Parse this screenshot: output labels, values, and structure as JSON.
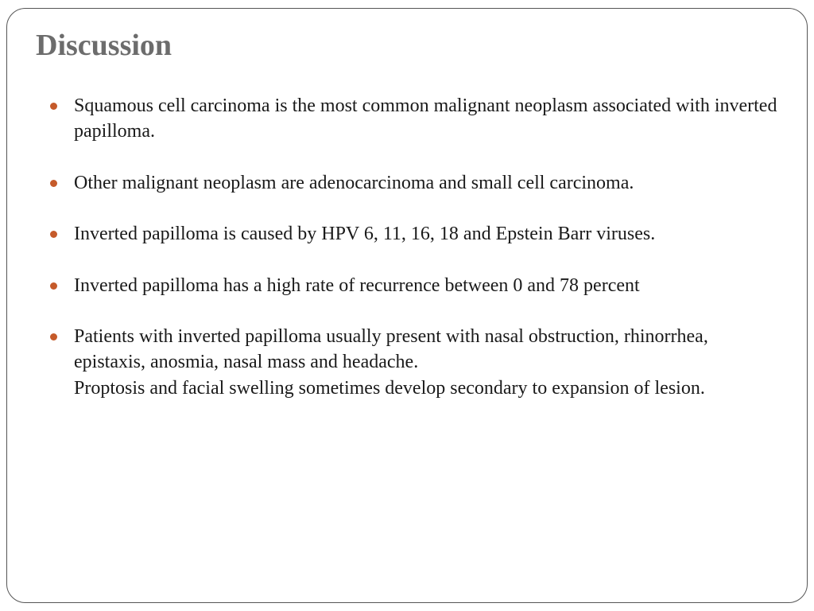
{
  "slide": {
    "title": "Discussion",
    "title_color": "#6c6c6c",
    "bullet_color": "#c55a2a",
    "text_color": "#1a1a1a",
    "border_color": "#555555",
    "background_color": "#ffffff",
    "title_fontsize": 38,
    "body_fontsize": 24,
    "bullets": [
      {
        "text": "Squamous cell carcinoma is the most common malignant neoplasm associated with inverted papilloma."
      },
      {
        "text": "Other malignant neoplasm are adenocarcinoma and small cell carcinoma."
      },
      {
        "text": "Inverted papilloma is caused by HPV 6, 11, 16, 18 and Epstein Barr viruses."
      },
      {
        "text": "Inverted papilloma has a high rate of recurrence between 0 and 78 percent"
      },
      {
        "text": "Patients with inverted papilloma usually present with nasal obstruction, rhinorrhea, epistaxis, anosmia, nasal mass and headache.",
        "continuation": "Proptosis and facial swelling sometimes develop secondary to expansion of lesion."
      }
    ]
  }
}
